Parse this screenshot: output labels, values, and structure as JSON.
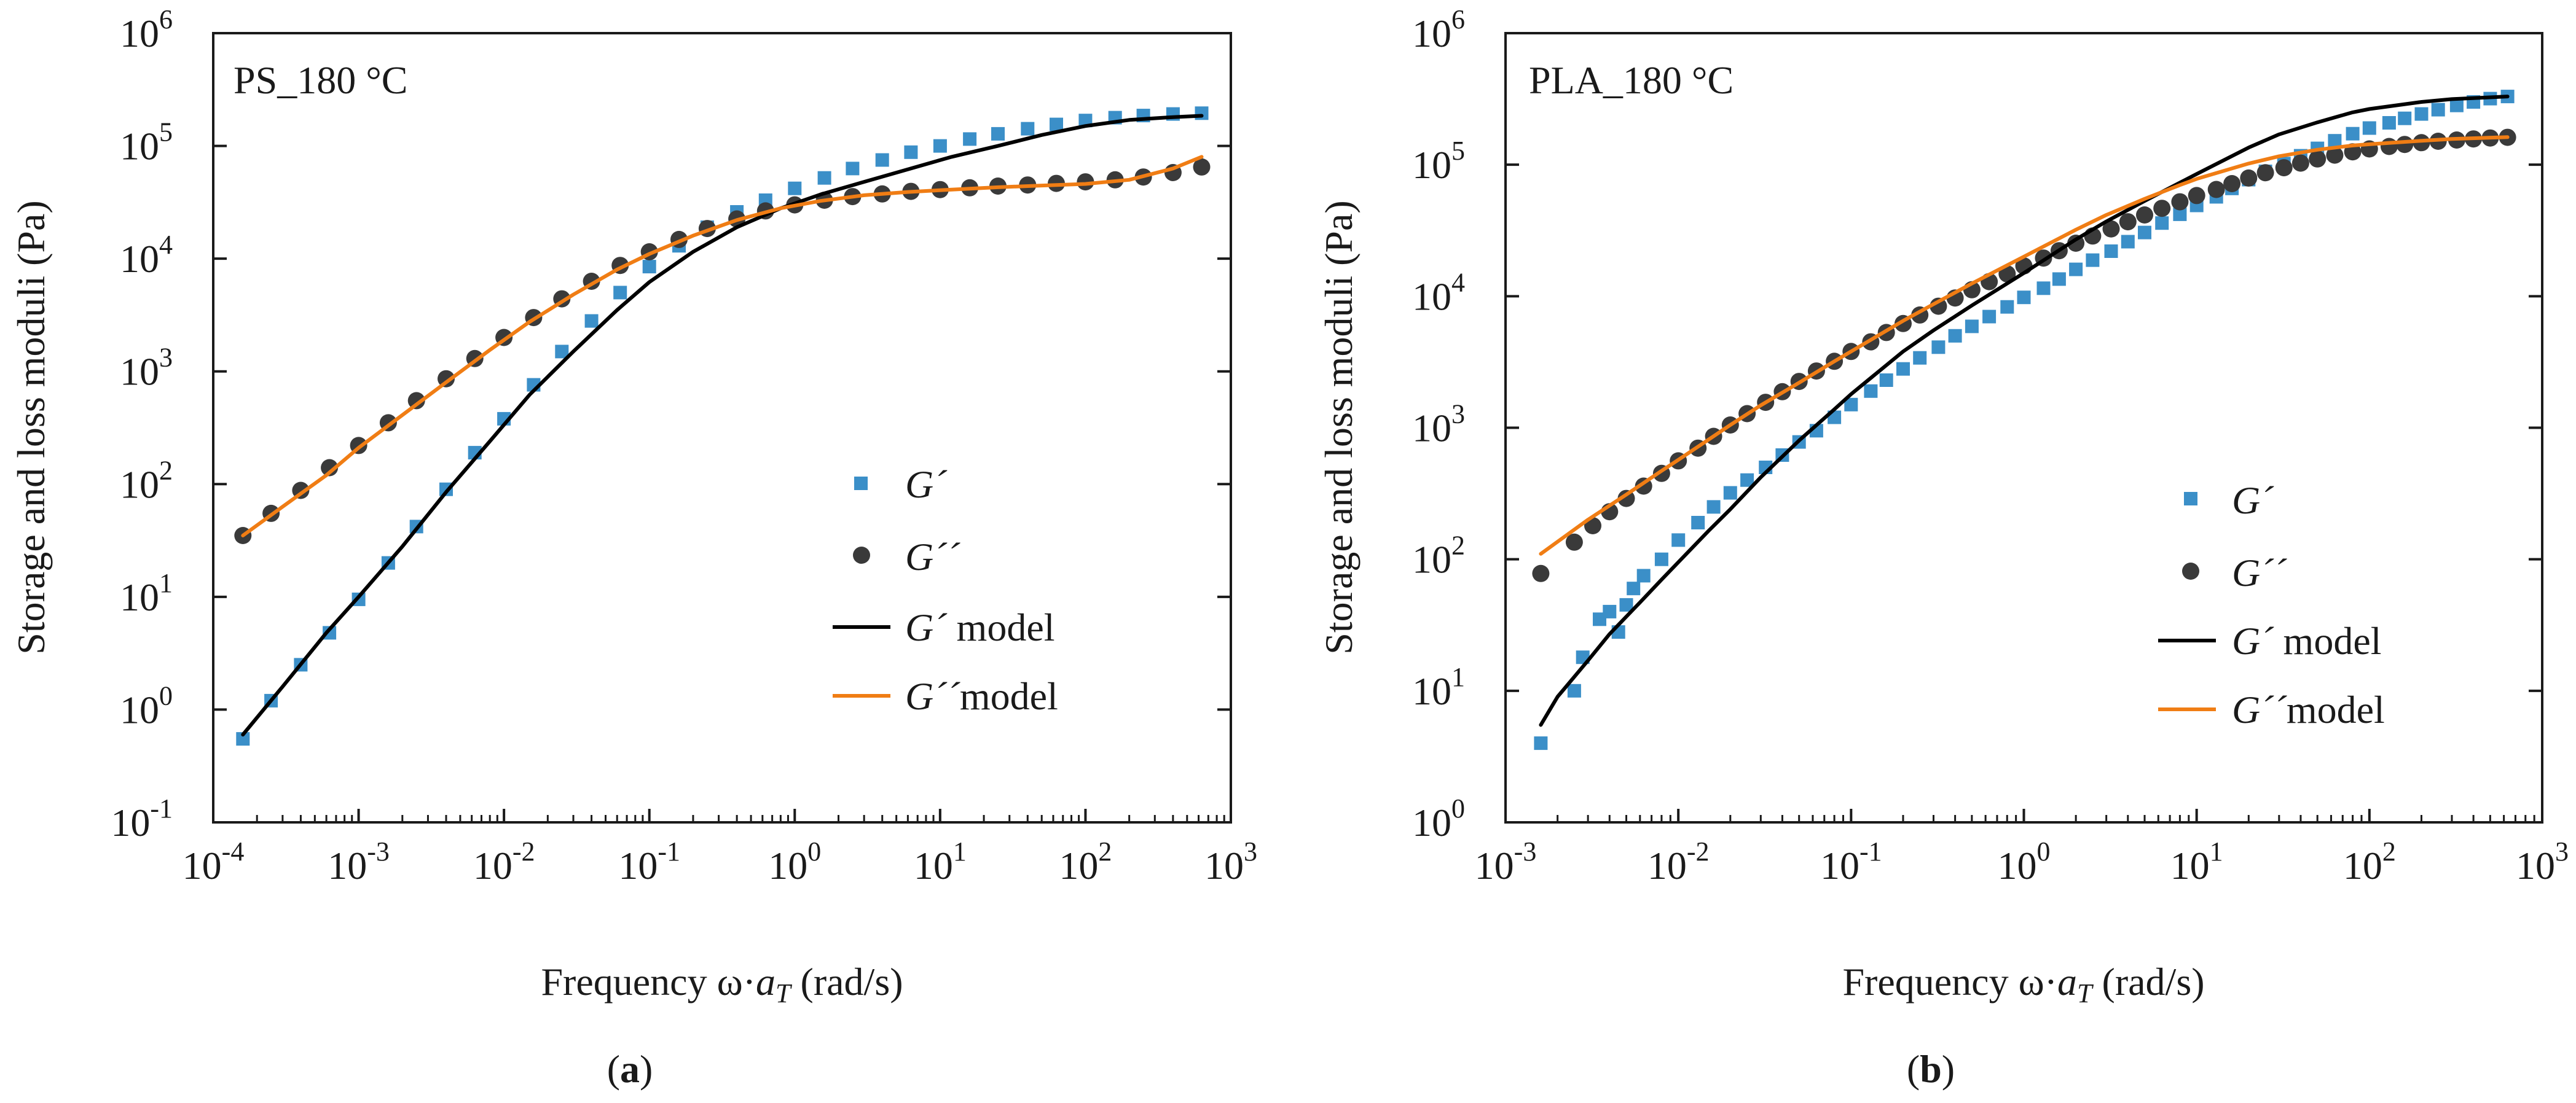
{
  "figure": {
    "panels": [
      "a",
      "b"
    ],
    "caption_labels": [
      "a",
      "b"
    ]
  },
  "colors": {
    "gp_marker": "#3b8fc8",
    "gpp_marker": "#3a3a3a",
    "gp_model": "#000000",
    "gpp_model": "#f07d14",
    "axis": "#1a1a1a"
  },
  "chart_data": [
    {
      "panel": "a",
      "type": "scatter",
      "annotation": "PS_180 °C",
      "xlabel_prefix": "Frequency ω·",
      "xlabel_var": "a",
      "xlabel_sub": "T",
      "xlabel_suffix": " (rad/s)",
      "ylabel": "Storage and loss moduli (Pa)",
      "xscale": "log",
      "yscale": "log",
      "xlim": [
        0.0001,
        1000
      ],
      "ylim": [
        0.1,
        1000000
      ],
      "x_ticks": [
        {
          "base": "10",
          "exp": "-4"
        },
        {
          "base": "10",
          "exp": "-3"
        },
        {
          "base": "10",
          "exp": "-2"
        },
        {
          "base": "10",
          "exp": "-1"
        },
        {
          "base": "10",
          "exp": "0"
        },
        {
          "base": "10",
          "exp": "1"
        },
        {
          "base": "10",
          "exp": "2"
        },
        {
          "base": "10",
          "exp": "3"
        }
      ],
      "y_ticks": [
        {
          "base": "10",
          "exp": "-1"
        },
        {
          "base": "10",
          "exp": "0"
        },
        {
          "base": "10",
          "exp": "1"
        },
        {
          "base": "10",
          "exp": "2"
        },
        {
          "base": "10",
          "exp": "3"
        },
        {
          "base": "10",
          "exp": "4"
        },
        {
          "base": "10",
          "exp": "5"
        },
        {
          "base": "10",
          "exp": "6"
        }
      ],
      "legend": {
        "position": "center-right",
        "entries": [
          {
            "label": "G´",
            "kind": "square"
          },
          {
            "label": "G´´",
            "kind": "circle"
          },
          {
            "label": "G´",
            "suffix": " model",
            "kind": "line-black"
          },
          {
            "label": "G´´",
            "suffix": "model",
            "kind": "line-orange"
          }
        ]
      },
      "series": [
        {
          "name": "G´",
          "marker": "square",
          "x": [
            0.00016,
            0.00025,
            0.0004,
            0.00063,
            0.001,
            0.0016,
            0.0025,
            0.004,
            0.0063,
            0.01,
            0.016,
            0.025,
            0.04,
            0.063,
            0.1,
            0.16,
            0.25,
            0.4,
            0.63,
            1,
            1.6,
            2.5,
            4,
            6.3,
            10,
            16,
            25,
            40,
            63,
            100,
            160,
            250,
            400,
            630
          ],
          "y": [
            0.55,
            1.2,
            2.5,
            4.8,
            9.5,
            20,
            42,
            90,
            190,
            380,
            760,
            1500,
            2800,
            5000,
            8500,
            13000,
            19000,
            26000,
            33000,
            42000,
            52000,
            63000,
            75000,
            88000,
            100000,
            115000,
            128000,
            142000,
            155000,
            168000,
            178000,
            186000,
            192000,
            195000
          ]
        },
        {
          "name": "G´´",
          "marker": "circle",
          "x": [
            0.00016,
            0.00025,
            0.0004,
            0.00063,
            0.001,
            0.0016,
            0.0025,
            0.004,
            0.0063,
            0.01,
            0.016,
            0.025,
            0.04,
            0.063,
            0.1,
            0.16,
            0.25,
            0.4,
            0.63,
            1,
            1.6,
            2.5,
            4,
            6.3,
            10,
            16,
            25,
            40,
            63,
            100,
            160,
            250,
            400,
            630
          ],
          "y": [
            35,
            55,
            88,
            140,
            220,
            350,
            550,
            860,
            1300,
            2000,
            3000,
            4400,
            6300,
            8700,
            11500,
            14800,
            18500,
            22500,
            26500,
            30000,
            33000,
            35500,
            37500,
            39500,
            41000,
            42500,
            44000,
            45000,
            46500,
            48000,
            50000,
            53000,
            58000,
            65000
          ]
        },
        {
          "name": "G´ model",
          "marker": "line",
          "x": [
            0.00016,
            0.0003,
            0.0006,
            0.001,
            0.002,
            0.004,
            0.008,
            0.015,
            0.03,
            0.06,
            0.1,
            0.2,
            0.4,
            0.8,
            1.5,
            3,
            6,
            12,
            25,
            50,
            100,
            200,
            400,
            630
          ],
          "y": [
            0.6,
            1.6,
            4.8,
            10,
            28,
            85,
            240,
            620,
            1500,
            3500,
            6200,
            11500,
            19000,
            28000,
            37000,
            48000,
            62000,
            80000,
            100000,
            125000,
            150000,
            170000,
            180000,
            185000
          ]
        },
        {
          "name": "G´´ model",
          "marker": "line",
          "x": [
            0.00016,
            0.0003,
            0.0006,
            0.001,
            0.002,
            0.004,
            0.008,
            0.015,
            0.03,
            0.06,
            0.1,
            0.2,
            0.4,
            0.8,
            1.5,
            3,
            6,
            12,
            25,
            50,
            100,
            200,
            400,
            630
          ],
          "y": [
            35,
            63,
            120,
            210,
            410,
            800,
            1550,
            2750,
            4800,
            8000,
            11000,
            16000,
            22000,
            28000,
            32500,
            36500,
            39000,
            41000,
            43000,
            44500,
            46000,
            50000,
            63000,
            80000
          ]
        }
      ]
    },
    {
      "panel": "b",
      "type": "scatter",
      "annotation": "PLA_180 °C",
      "xlabel_prefix": "Frequency ω·",
      "xlabel_var": "a",
      "xlabel_sub": "T",
      "xlabel_suffix": " (rad/s)",
      "ylabel": "Storage and loss moduli (Pa)",
      "xscale": "log",
      "yscale": "log",
      "xlim": [
        0.001,
        1000
      ],
      "ylim": [
        1,
        1000000
      ],
      "x_ticks": [
        {
          "base": "10",
          "exp": "-3"
        },
        {
          "base": "10",
          "exp": "-2"
        },
        {
          "base": "10",
          "exp": "-1"
        },
        {
          "base": "10",
          "exp": "0"
        },
        {
          "base": "10",
          "exp": "1"
        },
        {
          "base": "10",
          "exp": "2"
        },
        {
          "base": "10",
          "exp": "3"
        }
      ],
      "y_ticks": [
        {
          "base": "10",
          "exp": "0"
        },
        {
          "base": "10",
          "exp": "1"
        },
        {
          "base": "10",
          "exp": "2"
        },
        {
          "base": "10",
          "exp": "3"
        },
        {
          "base": "10",
          "exp": "4"
        },
        {
          "base": "10",
          "exp": "5"
        },
        {
          "base": "10",
          "exp": "6"
        }
      ],
      "legend": {
        "position": "lower-right",
        "entries": [
          {
            "label": "G´",
            "kind": "square"
          },
          {
            "label": "G´´",
            "kind": "circle"
          },
          {
            "label": "G´",
            "suffix": " model",
            "kind": "line-black"
          },
          {
            "label": "G´´",
            "suffix": "model",
            "kind": "line-orange"
          }
        ]
      },
      "series": [
        {
          "name": "G´",
          "marker": "square",
          "x": [
            0.0016,
            0.0025,
            0.0028,
            0.0035,
            0.004,
            0.0045,
            0.005,
            0.0055,
            0.0063,
            0.008,
            0.01,
            0.013,
            0.016,
            0.02,
            0.025,
            0.032,
            0.04,
            0.05,
            0.063,
            0.08,
            0.1,
            0.13,
            0.16,
            0.2,
            0.25,
            0.32,
            0.4,
            0.5,
            0.63,
            0.8,
            1,
            1.3,
            1.6,
            2,
            2.5,
            3.2,
            4,
            5,
            6.3,
            8,
            10,
            13,
            16,
            20,
            25,
            32,
            40,
            50,
            63,
            80,
            100,
            130,
            160,
            200,
            250,
            320,
            400,
            500,
            630
          ],
          "y": [
            4,
            10,
            18,
            35,
            40,
            28,
            45,
            60,
            75,
            100,
            140,
            190,
            250,
            320,
            400,
            500,
            620,
            780,
            950,
            1200,
            1500,
            1900,
            2300,
            2800,
            3400,
            4100,
            5000,
            5900,
            7000,
            8300,
            9800,
            11500,
            13500,
            16000,
            18800,
            22000,
            26000,
            30500,
            36000,
            42000,
            49000,
            57000,
            66000,
            77000,
            89000,
            102000,
            117000,
            133000,
            152000,
            172000,
            190000,
            208000,
            225000,
            243000,
            262000,
            282000,
            300000,
            318000,
            330000
          ]
        },
        {
          "name": "G´´",
          "marker": "circle",
          "x": [
            0.0016,
            0.0025,
            0.0032,
            0.004,
            0.005,
            0.0063,
            0.008,
            0.01,
            0.013,
            0.016,
            0.02,
            0.025,
            0.032,
            0.04,
            0.05,
            0.063,
            0.08,
            0.1,
            0.13,
            0.16,
            0.2,
            0.25,
            0.32,
            0.4,
            0.5,
            0.63,
            0.8,
            1,
            1.3,
            1.6,
            2,
            2.5,
            3.2,
            4,
            5,
            6.3,
            8,
            10,
            13,
            16,
            20,
            25,
            32,
            40,
            50,
            63,
            80,
            100,
            130,
            160,
            200,
            250,
            320,
            400,
            500,
            630
          ],
          "y": [
            78,
            135,
            180,
            230,
            290,
            360,
            450,
            560,
            700,
            860,
            1050,
            1280,
            1560,
            1880,
            2250,
            2700,
            3200,
            3800,
            4500,
            5300,
            6200,
            7200,
            8400,
            9700,
            11200,
            12900,
            14800,
            17000,
            19500,
            22200,
            25300,
            28700,
            32500,
            36800,
            41500,
            46600,
            52200,
            58300,
            64800,
            71800,
            79200,
            86900,
            94800,
            102800,
            110600,
            118200,
            125300,
            131800,
            137600,
            142600,
            147000,
            150800,
            154000,
            157000,
            159500,
            161500
          ]
        },
        {
          "name": "G´ model",
          "marker": "line",
          "x": [
            0.0016,
            0.002,
            0.003,
            0.004,
            0.006,
            0.008,
            0.01,
            0.015,
            0.02,
            0.03,
            0.05,
            0.08,
            0.1,
            0.2,
            0.3,
            0.5,
            0.8,
            1,
            2,
            3,
            5,
            8,
            10,
            20,
            30,
            50,
            80,
            100,
            200,
            300,
            630
          ],
          "y": [
            5.5,
            9,
            17,
            27,
            47,
            70,
            95,
            165,
            240,
            420,
            800,
            1380,
            1800,
            3800,
            5500,
            8500,
            12500,
            15000,
            27000,
            37000,
            53000,
            73000,
            85000,
            135000,
            170000,
            210000,
            250000,
            265000,
            300000,
            315000,
            330000
          ]
        },
        {
          "name": "G´´ model",
          "marker": "line",
          "x": [
            0.0016,
            0.003,
            0.005,
            0.008,
            0.01,
            0.02,
            0.03,
            0.05,
            0.08,
            0.1,
            0.2,
            0.3,
            0.5,
            0.8,
            1,
            2,
            3,
            5,
            8,
            10,
            20,
            30,
            50,
            80,
            100,
            200,
            300,
            630
          ],
          "y": [
            110,
            200,
            310,
            470,
            570,
            1050,
            1480,
            2200,
            3200,
            3800,
            6500,
            8700,
            12500,
            17200,
            20000,
            32000,
            41500,
            55000,
            70000,
            78000,
            102000,
            116000,
            130000,
            140000,
            143000,
            152000,
            157000,
            162000
          ]
        }
      ]
    }
  ]
}
